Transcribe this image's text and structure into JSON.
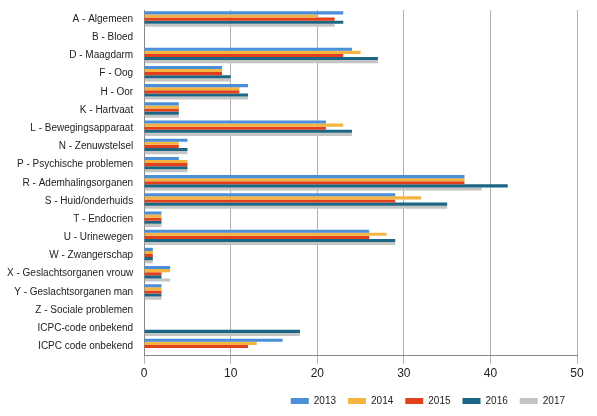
{
  "chart_data": {
    "type": "bar",
    "orientation": "horizontal",
    "categories": [
      "A - Algemeen",
      "B - Bloed",
      "D - Maagdarm",
      "F - Oog",
      "H - Oor",
      "K - Hartvaat",
      "L - Bewegingsapparaat",
      "N - Zenuwstelsel",
      "P - Psychische problemen",
      "R - Ademhalingsorganen",
      "S - Huid/onderhuids",
      "T - Endocrien",
      "U - Urinewegen",
      "W - Zwangerschap",
      "X - Geslachtsorganen vrouw",
      "Y - Geslachtsorganen man",
      "Z - Sociale problemen",
      "ICPC-code onbekend",
      "ICPC code onbekend"
    ],
    "series": [
      {
        "name": "2013",
        "color": "#4a8fd8",
        "values": [
          23,
          0,
          24,
          9,
          12,
          4,
          21,
          5,
          4,
          37,
          29,
          2,
          26,
          1,
          3,
          2,
          0,
          0,
          16
        ]
      },
      {
        "name": "2014",
        "color": "#f5b340",
        "values": [
          20,
          0,
          25,
          9,
          11,
          4,
          23,
          4,
          5,
          37,
          32,
          2,
          28,
          1,
          3,
          2,
          0,
          0,
          13
        ]
      },
      {
        "name": "2015",
        "color": "#e2401c",
        "values": [
          22,
          0,
          23,
          9,
          11,
          4,
          21,
          4,
          5,
          37,
          29,
          2,
          26,
          1,
          2,
          2,
          0,
          0,
          12
        ]
      },
      {
        "name": "2016",
        "color": "#1b6585",
        "values": [
          23,
          0,
          27,
          10,
          12,
          4,
          24,
          5,
          5,
          42,
          35,
          2,
          29,
          1,
          2,
          2,
          0,
          18,
          0
        ]
      },
      {
        "name": "2017",
        "color": "#c4c4c4",
        "values": [
          22,
          0,
          27,
          10,
          12,
          4,
          24,
          5,
          5,
          39,
          35,
          2,
          29,
          1,
          3,
          2,
          0,
          18,
          0
        ]
      }
    ],
    "xlim": [
      0,
      50
    ],
    "xticks": [
      0,
      10,
      20,
      30,
      40,
      50
    ],
    "grid": true,
    "legend": "bottom-right"
  }
}
